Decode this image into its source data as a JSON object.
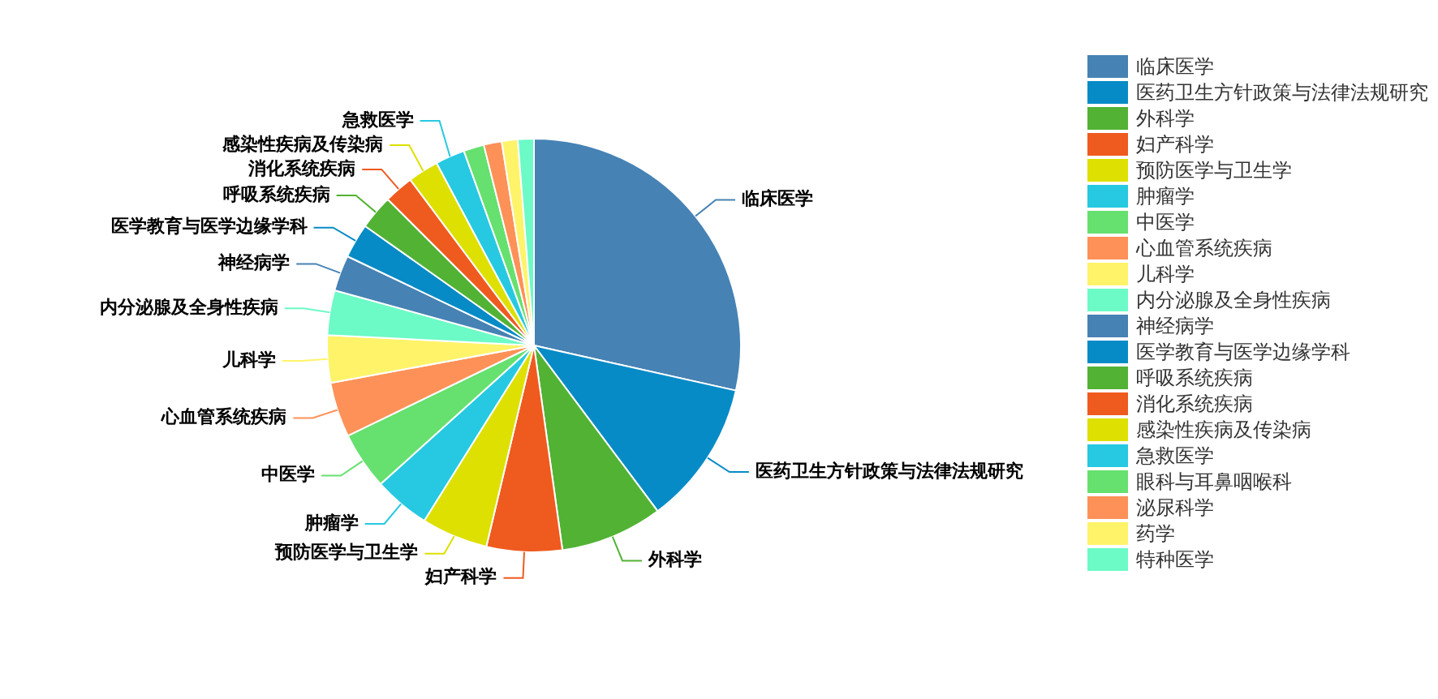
{
  "chart_data": {
    "type": "pie",
    "categories": [
      "临床医学",
      "医药卫生方针政策与法律法规研究",
      "外科学",
      "妇产科学",
      "预防医学与卫生学",
      "肿瘤学",
      "中医学",
      "心血管系统疾病",
      "儿科学",
      "内分泌腺及全身性疾病",
      "神经病学",
      "医学教育与医学边缘学科",
      "呼吸系统疾病",
      "消化系统疾病",
      "感染性疾病及传染病",
      "急救医学",
      "眼科与耳鼻咽喉科",
      "泌尿科学",
      "药学",
      "特种医学"
    ],
    "values": [
      28.5,
      11.3,
      8,
      5.9,
      5.2,
      4.4,
      4.5,
      4.3,
      3.7,
      3.5,
      2.8,
      2.7,
      2.7,
      2.3,
      2.4,
      2.3,
      1.6,
      1.4,
      1.25,
      1.25
    ],
    "colors": [
      "#4682b4",
      "#078bc6",
      "#52b234",
      "#ef5a1f",
      "#dde000",
      "#26c9e1",
      "#66e06e",
      "#fe9158",
      "#fff36a",
      "#6cfac6",
      "#4682b4",
      "#078bc6",
      "#52b234",
      "#ef5a1f",
      "#dde000",
      "#26c9e1",
      "#66e06e",
      "#fe9158",
      "#fff36a",
      "#6cfac6"
    ],
    "legend": "top right"
  }
}
